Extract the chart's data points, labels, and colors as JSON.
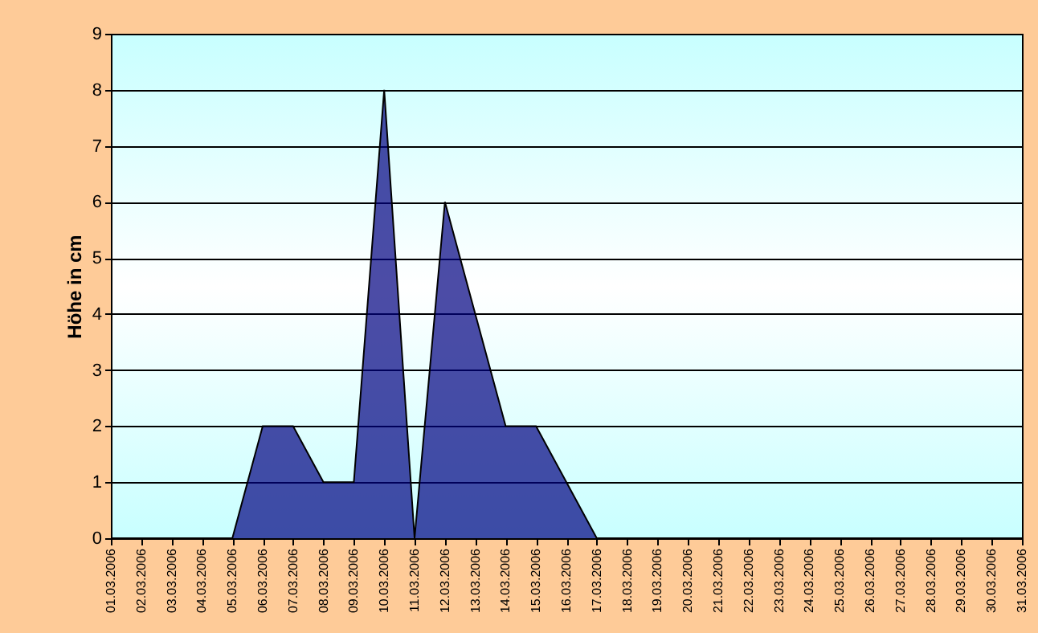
{
  "chart_data": {
    "type": "area",
    "ylabel": "Höhe in cm",
    "categories": [
      "01.03.2006",
      "02.03.2006",
      "03.03.2006",
      "04.03.2006",
      "05.03.2006",
      "06.03.2006",
      "07.03.2006",
      "08.03.2006",
      "09.03.2006",
      "10.03.2006",
      "11.03.2006",
      "12.03.2006",
      "13.03.2006",
      "14.03.2006",
      "15.03.2006",
      "16.03.2006",
      "17.03.2006",
      "18.03.2006",
      "19.03.2006",
      "20.03.2006",
      "21.03.2006",
      "22.03.2006",
      "23.03.2006",
      "24.03.2006",
      "25.03.2006",
      "26.03.2006",
      "27.03.2006",
      "28.03.2006",
      "29.03.2006",
      "30.03.2006",
      "31.03.2006"
    ],
    "values": [
      0,
      0,
      0,
      0,
      0,
      2,
      2,
      1,
      1,
      8,
      0,
      6,
      4,
      2,
      2,
      1,
      0,
      0,
      0,
      0,
      0,
      0,
      0,
      0,
      0,
      0,
      0,
      0,
      0,
      0,
      0
    ],
    "color": "#000080",
    "ylim": [
      0,
      9
    ],
    "yticks": [
      0,
      1,
      2,
      3,
      4,
      5,
      6,
      7,
      8,
      9
    ],
    "grid": "y"
  }
}
